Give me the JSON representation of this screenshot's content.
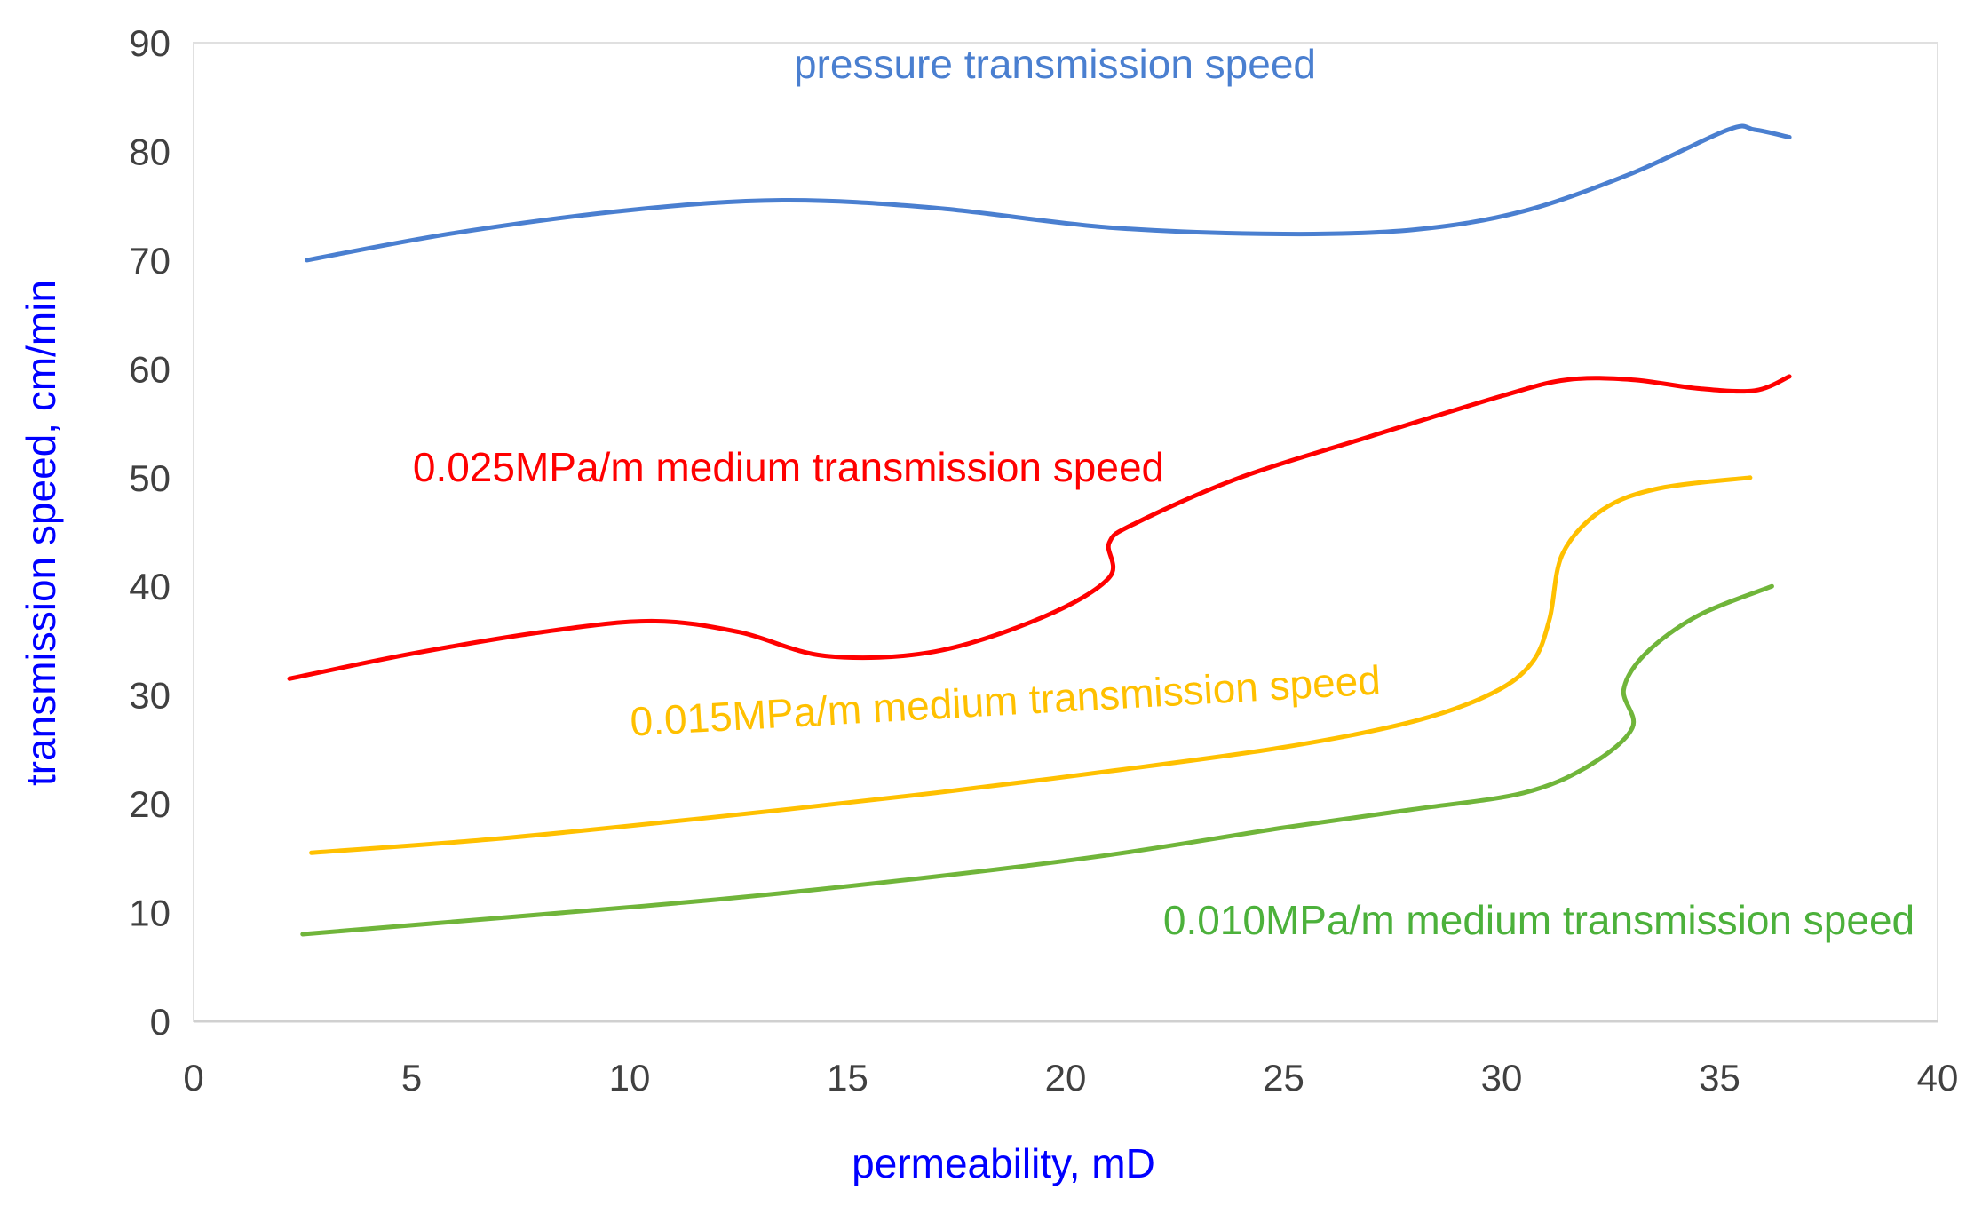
{
  "chart_data": {
    "type": "line",
    "title": "",
    "xlabel": "permeability,  mD",
    "ylabel": "transmission speed,  cm/min",
    "xlim": [
      0,
      40
    ],
    "ylim": [
      0,
      90
    ],
    "xticks": [
      0,
      5,
      10,
      15,
      20,
      25,
      30,
      35,
      40
    ],
    "yticks": [
      0,
      10,
      20,
      30,
      40,
      50,
      60,
      70,
      80,
      90
    ],
    "grid": false,
    "series": [
      {
        "name": "pressure transmission speed",
        "color": "#4a7fd0",
        "points": [
          [
            2.6,
            70
          ],
          [
            6,
            72.5
          ],
          [
            10,
            74.6
          ],
          [
            13.5,
            75.5
          ],
          [
            17,
            74.8
          ],
          [
            21,
            73
          ],
          [
            25,
            72.4
          ],
          [
            28,
            72.8
          ],
          [
            30.5,
            74.5
          ],
          [
            33,
            78
          ],
          [
            35.2,
            82
          ],
          [
            35.8,
            82
          ],
          [
            36.6,
            81.3
          ]
        ]
      },
      {
        "name": "0.025MPa/m medium transmission speed",
        "color": "#ff0000",
        "points": [
          [
            2.2,
            31.5
          ],
          [
            5,
            33.8
          ],
          [
            8,
            35.8
          ],
          [
            10.5,
            36.8
          ],
          [
            12.5,
            35.8
          ],
          [
            14.5,
            33.6
          ],
          [
            17,
            34
          ],
          [
            19.5,
            37.2
          ],
          [
            21,
            40.8
          ],
          [
            21,
            44
          ],
          [
            21.6,
            45.8
          ],
          [
            24,
            50
          ],
          [
            27,
            53.8
          ],
          [
            30,
            57.5
          ],
          [
            31.5,
            59
          ],
          [
            33,
            59
          ],
          [
            34.5,
            58.2
          ],
          [
            35.8,
            58
          ],
          [
            36.6,
            59.3
          ]
        ]
      },
      {
        "name": "0.015MPa/m medium transmission speed",
        "color": "#ffc000",
        "points": [
          [
            2.7,
            15.5
          ],
          [
            7,
            16.8
          ],
          [
            12,
            18.8
          ],
          [
            17,
            21
          ],
          [
            21,
            23
          ],
          [
            25,
            25.2
          ],
          [
            28,
            27.6
          ],
          [
            29.8,
            30.2
          ],
          [
            30.7,
            33
          ],
          [
            31.1,
            37
          ],
          [
            31.4,
            43
          ],
          [
            32.3,
            47
          ],
          [
            33.6,
            49
          ],
          [
            35.7,
            50
          ]
        ]
      },
      {
        "name": "0.010MPa/m medium transmission speed",
        "color": "#70b53a",
        "points": [
          [
            2.5,
            8
          ],
          [
            7,
            9.5
          ],
          [
            12,
            11.2
          ],
          [
            17,
            13.3
          ],
          [
            21,
            15.3
          ],
          [
            25,
            17.8
          ],
          [
            28,
            19.5
          ],
          [
            30.5,
            21
          ],
          [
            32,
            23.5
          ],
          [
            33,
            27
          ],
          [
            32.8,
            30.5
          ],
          [
            33.3,
            33.8
          ],
          [
            34.5,
            37.3
          ],
          [
            36.2,
            40
          ]
        ]
      }
    ],
    "labels": {
      "pressure": "pressure transmission speed",
      "p025": "0.025MPa/m medium transmission speed",
      "p015": "0.015MPa/m medium transmission speed",
      "p010": "0.010MPa/m medium transmission speed"
    }
  }
}
